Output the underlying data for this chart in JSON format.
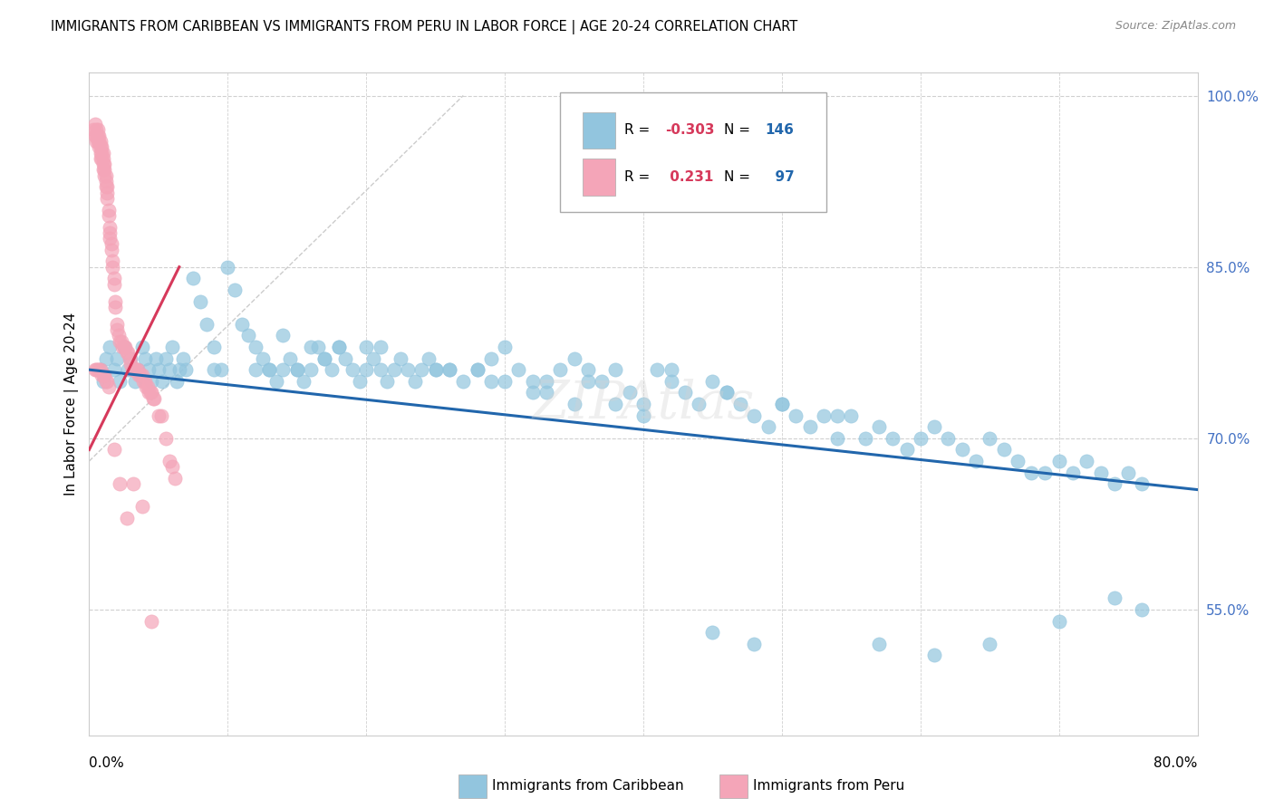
{
  "title": "IMMIGRANTS FROM CARIBBEAN VS IMMIGRANTS FROM PERU IN LABOR FORCE | AGE 20-24 CORRELATION CHART",
  "source": "Source: ZipAtlas.com",
  "ylabel": "In Labor Force | Age 20-24",
  "right_yticks": [
    "100.0%",
    "85.0%",
    "70.0%",
    "55.0%"
  ],
  "right_ytick_vals": [
    1.0,
    0.85,
    0.7,
    0.55
  ],
  "xmin": 0.0,
  "xmax": 0.8,
  "ymin": 0.44,
  "ymax": 1.02,
  "color_blue": "#92c5de",
  "color_blue_line": "#2166ac",
  "color_pink": "#f4a5b8",
  "color_pink_line": "#d6395b",
  "watermark": "ZIPAtlas",
  "blue_scatter_x": [
    0.008,
    0.01,
    0.012,
    0.015,
    0.018,
    0.02,
    0.022,
    0.025,
    0.028,
    0.03,
    0.033,
    0.035,
    0.038,
    0.04,
    0.043,
    0.045,
    0.048,
    0.05,
    0.053,
    0.055,
    0.058,
    0.06,
    0.063,
    0.065,
    0.068,
    0.07,
    0.075,
    0.08,
    0.085,
    0.09,
    0.095,
    0.1,
    0.105,
    0.11,
    0.115,
    0.12,
    0.125,
    0.13,
    0.135,
    0.14,
    0.145,
    0.15,
    0.155,
    0.16,
    0.165,
    0.17,
    0.175,
    0.18,
    0.185,
    0.19,
    0.195,
    0.2,
    0.205,
    0.21,
    0.215,
    0.22,
    0.225,
    0.23,
    0.235,
    0.24,
    0.245,
    0.25,
    0.26,
    0.27,
    0.28,
    0.29,
    0.3,
    0.31,
    0.32,
    0.33,
    0.34,
    0.35,
    0.36,
    0.37,
    0.38,
    0.39,
    0.4,
    0.41,
    0.42,
    0.43,
    0.44,
    0.45,
    0.46,
    0.47,
    0.48,
    0.49,
    0.5,
    0.51,
    0.52,
    0.53,
    0.54,
    0.55,
    0.56,
    0.57,
    0.58,
    0.59,
    0.6,
    0.61,
    0.62,
    0.63,
    0.64,
    0.65,
    0.66,
    0.67,
    0.68,
    0.69,
    0.7,
    0.71,
    0.72,
    0.73,
    0.74,
    0.75,
    0.76,
    0.2,
    0.15,
    0.12,
    0.09,
    0.3,
    0.35,
    0.4,
    0.25,
    0.18,
    0.16,
    0.14,
    0.28,
    0.32,
    0.36,
    0.42,
    0.13,
    0.17,
    0.21,
    0.26,
    0.29,
    0.33,
    0.38,
    0.46,
    0.5,
    0.54,
    0.57,
    0.61,
    0.65,
    0.7,
    0.74,
    0.76,
    0.45,
    0.48
  ],
  "blue_scatter_y": [
    0.76,
    0.75,
    0.77,
    0.78,
    0.76,
    0.77,
    0.75,
    0.78,
    0.76,
    0.77,
    0.75,
    0.76,
    0.78,
    0.77,
    0.76,
    0.75,
    0.77,
    0.76,
    0.75,
    0.77,
    0.76,
    0.78,
    0.75,
    0.76,
    0.77,
    0.76,
    0.84,
    0.82,
    0.8,
    0.78,
    0.76,
    0.85,
    0.83,
    0.8,
    0.79,
    0.78,
    0.77,
    0.76,
    0.75,
    0.76,
    0.77,
    0.76,
    0.75,
    0.76,
    0.78,
    0.77,
    0.76,
    0.78,
    0.77,
    0.76,
    0.75,
    0.78,
    0.77,
    0.76,
    0.75,
    0.76,
    0.77,
    0.76,
    0.75,
    0.76,
    0.77,
    0.76,
    0.76,
    0.75,
    0.76,
    0.77,
    0.78,
    0.76,
    0.75,
    0.74,
    0.76,
    0.77,
    0.76,
    0.75,
    0.76,
    0.74,
    0.73,
    0.76,
    0.75,
    0.74,
    0.73,
    0.75,
    0.74,
    0.73,
    0.72,
    0.71,
    0.73,
    0.72,
    0.71,
    0.72,
    0.7,
    0.72,
    0.7,
    0.71,
    0.7,
    0.69,
    0.7,
    0.71,
    0.7,
    0.69,
    0.68,
    0.7,
    0.69,
    0.68,
    0.67,
    0.67,
    0.68,
    0.67,
    0.68,
    0.67,
    0.66,
    0.67,
    0.66,
    0.76,
    0.76,
    0.76,
    0.76,
    0.75,
    0.73,
    0.72,
    0.76,
    0.78,
    0.78,
    0.79,
    0.76,
    0.74,
    0.75,
    0.76,
    0.76,
    0.77,
    0.78,
    0.76,
    0.75,
    0.75,
    0.73,
    0.74,
    0.73,
    0.72,
    0.52,
    0.51,
    0.52,
    0.54,
    0.56,
    0.55,
    0.53,
    0.52
  ],
  "pink_scatter_x": [
    0.003,
    0.004,
    0.004,
    0.005,
    0.005,
    0.005,
    0.006,
    0.006,
    0.006,
    0.007,
    0.007,
    0.007,
    0.008,
    0.008,
    0.008,
    0.008,
    0.009,
    0.009,
    0.009,
    0.01,
    0.01,
    0.01,
    0.01,
    0.011,
    0.011,
    0.011,
    0.012,
    0.012,
    0.012,
    0.013,
    0.013,
    0.013,
    0.014,
    0.014,
    0.015,
    0.015,
    0.015,
    0.016,
    0.016,
    0.017,
    0.017,
    0.018,
    0.018,
    0.019,
    0.019,
    0.02,
    0.02,
    0.021,
    0.022,
    0.023,
    0.024,
    0.025,
    0.026,
    0.027,
    0.028,
    0.029,
    0.03,
    0.031,
    0.032,
    0.033,
    0.034,
    0.035,
    0.036,
    0.037,
    0.038,
    0.039,
    0.04,
    0.041,
    0.042,
    0.043,
    0.044,
    0.045,
    0.046,
    0.047,
    0.05,
    0.052,
    0.055,
    0.058,
    0.06,
    0.062,
    0.004,
    0.005,
    0.006,
    0.007,
    0.008,
    0.009,
    0.01,
    0.011,
    0.012,
    0.013,
    0.014,
    0.018,
    0.022,
    0.027,
    0.032,
    0.038,
    0.045
  ],
  "pink_scatter_y": [
    0.97,
    0.975,
    0.965,
    0.97,
    0.965,
    0.96,
    0.97,
    0.965,
    0.96,
    0.965,
    0.96,
    0.955,
    0.96,
    0.955,
    0.95,
    0.945,
    0.955,
    0.95,
    0.945,
    0.95,
    0.945,
    0.94,
    0.935,
    0.94,
    0.935,
    0.93,
    0.93,
    0.925,
    0.92,
    0.92,
    0.915,
    0.91,
    0.9,
    0.895,
    0.885,
    0.88,
    0.875,
    0.87,
    0.865,
    0.855,
    0.85,
    0.84,
    0.835,
    0.82,
    0.815,
    0.8,
    0.795,
    0.79,
    0.785,
    0.785,
    0.78,
    0.78,
    0.78,
    0.775,
    0.775,
    0.77,
    0.765,
    0.76,
    0.76,
    0.76,
    0.76,
    0.76,
    0.755,
    0.755,
    0.755,
    0.75,
    0.75,
    0.745,
    0.745,
    0.74,
    0.74,
    0.74,
    0.735,
    0.735,
    0.72,
    0.72,
    0.7,
    0.68,
    0.675,
    0.665,
    0.76,
    0.76,
    0.76,
    0.76,
    0.76,
    0.755,
    0.755,
    0.755,
    0.75,
    0.75,
    0.745,
    0.69,
    0.66,
    0.63,
    0.66,
    0.64,
    0.54
  ]
}
